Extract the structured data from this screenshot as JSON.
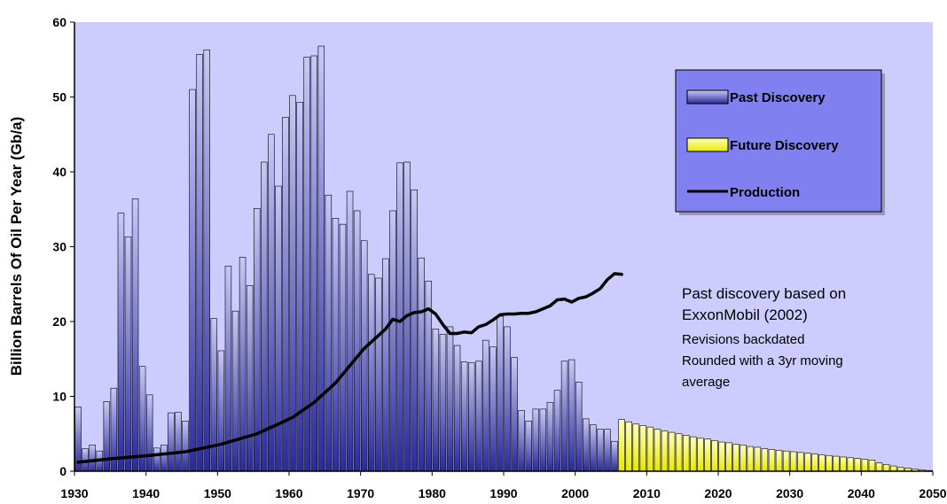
{
  "chart_data": {
    "type": "bar",
    "title": "",
    "xlabel": "",
    "ylabel": "Billion Barrels Of Oil Per Year (Gb/a)",
    "xlim": [
      1930,
      2050
    ],
    "ylim": [
      0,
      60
    ],
    "xticks": [
      "1930",
      "1940",
      "1950",
      "1960",
      "1970",
      "1980",
      "1990",
      "2000",
      "2010",
      "2020",
      "2030",
      "2040",
      "2050"
    ],
    "yticks": [
      "0",
      "10",
      "20",
      "30",
      "40",
      "50",
      "60"
    ],
    "grid": false,
    "legend_position": "top-right",
    "colors": {
      "plot_bg": "#ccccff",
      "past_bar_top": "#c8c8f8",
      "past_bar_bottom": "#2a2a9c",
      "future_bar_top": "#ffffc0",
      "future_bar_bottom": "#e8e800",
      "production": "#000000",
      "legend_bg": "#8080f0"
    },
    "legend": {
      "past": "Past Discovery",
      "future": "Future Discovery",
      "production": "Production"
    },
    "annotation": {
      "line1": "Past discovery based on",
      "line2": "ExxonMobil (2002)",
      "line3": "Revisions backdated",
      "line4": "Rounded with a 3yr moving",
      "line5": "average"
    },
    "series": [
      {
        "name": "Past Discovery",
        "x": [
          1930,
          1931,
          1932,
          1933,
          1934,
          1935,
          1936,
          1937,
          1938,
          1939,
          1940,
          1941,
          1942,
          1943,
          1944,
          1945,
          1946,
          1947,
          1948,
          1949,
          1950,
          1951,
          1952,
          1953,
          1954,
          1955,
          1956,
          1957,
          1958,
          1959,
          1960,
          1961,
          1962,
          1963,
          1964,
          1965,
          1966,
          1967,
          1968,
          1969,
          1970,
          1971,
          1972,
          1973,
          1974,
          1975,
          1976,
          1977,
          1978,
          1979,
          1980,
          1981,
          1982,
          1983,
          1984,
          1985,
          1986,
          1987,
          1988,
          1989,
          1990,
          1991,
          1992,
          1993,
          1994,
          1995,
          1996,
          1997,
          1998,
          1999,
          2000,
          2001,
          2002,
          2003,
          2004,
          2005
        ],
        "values": [
          8.6,
          3.0,
          3.5,
          2.7,
          9.3,
          11.1,
          34.5,
          31.3,
          36.4,
          14.0,
          10.2,
          3.1,
          3.5,
          7.8,
          7.9,
          6.7,
          51.0,
          55.7,
          56.3,
          20.4,
          16.1,
          27.4,
          21.4,
          28.6,
          24.8,
          35.1,
          41.3,
          45.0,
          38.1,
          47.3,
          50.2,
          49.3,
          55.3,
          55.5,
          56.8,
          36.9,
          33.8,
          33.0,
          37.4,
          34.8,
          30.8,
          26.3,
          25.8,
          28.4,
          34.8,
          41.2,
          41.3,
          37.6,
          28.5,
          25.4,
          19.0,
          18.3,
          19.3,
          16.8,
          14.6,
          14.5,
          14.7,
          17.5,
          16.6,
          20.7,
          19.3,
          15.2,
          8.1,
          6.7,
          8.3,
          8.3,
          9.2,
          10.8,
          14.7,
          14.9,
          11.9,
          7.0,
          6.2,
          5.6,
          5.6,
          4.0
        ]
      },
      {
        "name": "Future Discovery",
        "x": [
          2006,
          2007,
          2008,
          2009,
          2010,
          2011,
          2012,
          2013,
          2014,
          2015,
          2016,
          2017,
          2018,
          2019,
          2020,
          2021,
          2022,
          2023,
          2024,
          2025,
          2026,
          2027,
          2028,
          2029,
          2030,
          2031,
          2032,
          2033,
          2034,
          2035,
          2036,
          2037,
          2038,
          2039,
          2040,
          2041,
          2042,
          2043,
          2044,
          2045,
          2046,
          2047,
          2048,
          2049
        ],
        "values": [
          6.9,
          6.6,
          6.3,
          6.1,
          5.9,
          5.6,
          5.4,
          5.2,
          5.0,
          4.8,
          4.6,
          4.4,
          4.3,
          4.1,
          3.9,
          3.8,
          3.6,
          3.5,
          3.3,
          3.2,
          3.0,
          2.9,
          2.8,
          2.7,
          2.6,
          2.5,
          2.4,
          2.3,
          2.2,
          2.1,
          2.0,
          1.9,
          1.8,
          1.7,
          1.6,
          1.5,
          1.1,
          0.9,
          0.7,
          0.5,
          0.4,
          0.3,
          0.2,
          0.1
        ]
      },
      {
        "name": "Production",
        "type": "line",
        "x": [
          1930,
          1935,
          1940,
          1945,
          1950,
          1955,
          1958,
          1960,
          1963,
          1966,
          1970,
          1973,
          1974,
          1975,
          1976,
          1977,
          1978,
          1979,
          1980,
          1981,
          1982,
          1983,
          1984,
          1985,
          1986,
          1987,
          1988,
          1989,
          1990,
          1991,
          1992,
          1993,
          1994,
          1995,
          1996,
          1997,
          1998,
          1999,
          2000,
          2001,
          2002,
          2003,
          2004,
          2005,
          2006
        ],
        "values": [
          1.2,
          1.7,
          2.1,
          2.6,
          3.6,
          5.0,
          6.3,
          7.2,
          9.2,
          11.8,
          16.4,
          19.0,
          20.3,
          20.0,
          20.8,
          21.2,
          21.3,
          21.7,
          21.0,
          19.6,
          18.4,
          18.4,
          18.6,
          18.5,
          19.3,
          19.6,
          20.2,
          20.9,
          21.0,
          21.0,
          21.1,
          21.1,
          21.3,
          21.7,
          22.1,
          22.9,
          23.0,
          22.6,
          23.1,
          23.3,
          23.8,
          24.4,
          25.6,
          26.4,
          26.3
        ]
      }
    ]
  }
}
